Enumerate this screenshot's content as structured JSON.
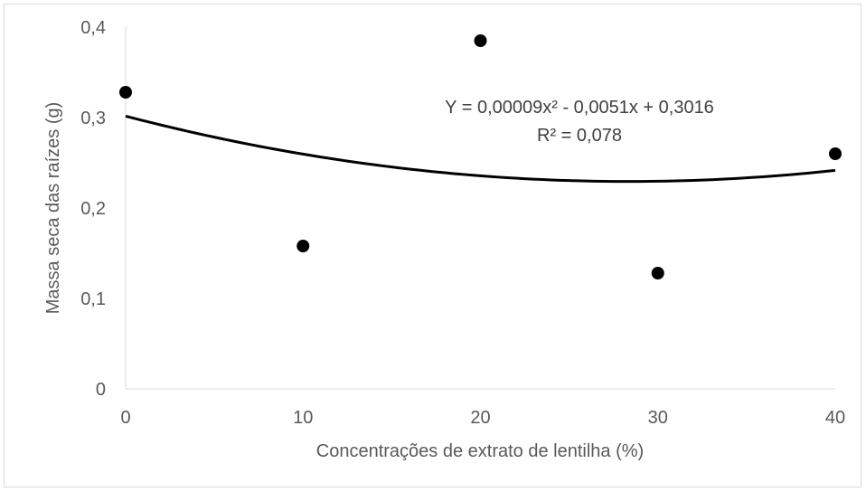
{
  "chart_data": {
    "type": "scatter",
    "title": "",
    "xlabel": "Concentrações de extrato de lentilha (%)",
    "ylabel": "Massa seca das raízes (g)",
    "xlim": [
      0,
      40
    ],
    "ylim": [
      0,
      0.4
    ],
    "x_ticks": [
      "0",
      "10",
      "20",
      "30",
      "40"
    ],
    "y_ticks": [
      "0",
      "0,1",
      "0,2",
      "0,3",
      "0,4"
    ],
    "grid": false,
    "legend": "none",
    "series": [
      {
        "x": [
          0,
          10,
          20,
          30,
          40
        ],
        "y": [
          0.328,
          0.158,
          0.385,
          0.128,
          0.26
        ],
        "marker_color": "#000000"
      }
    ],
    "trendline": {
      "type": "polynomial",
      "coefficients": [
        9e-05,
        -0.0051,
        0.3016
      ],
      "color": "#000000"
    },
    "annotations": {
      "equation": "Y = 0,00009x² - 0,0051x + 0,3016",
      "r_squared": "R² = 0,078"
    }
  }
}
